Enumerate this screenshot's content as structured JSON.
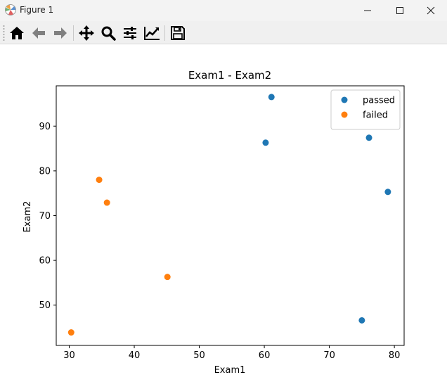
{
  "window": {
    "title": "Figure 1",
    "icons": {
      "app": "matplotlib-icon",
      "minimize": "minimize-icon",
      "maximize": "maximize-icon",
      "close": "close-icon"
    }
  },
  "toolbar": {
    "buttons": [
      {
        "name": "home-button",
        "icon": "home-icon"
      },
      {
        "name": "back-button",
        "icon": "arrow-left-icon"
      },
      {
        "name": "forward-button",
        "icon": "arrow-right-icon"
      },
      {
        "name": "pan-button",
        "icon": "move-icon"
      },
      {
        "name": "zoom-button",
        "icon": "magnifier-icon"
      },
      {
        "name": "subplots-button",
        "icon": "sliders-icon"
      },
      {
        "name": "edit-axes-button",
        "icon": "line-chart-icon"
      },
      {
        "name": "save-button",
        "icon": "floppy-disk-icon"
      }
    ]
  },
  "chart_data": {
    "type": "scatter",
    "title": "Exam1 - Exam2",
    "xlabel": "Exam1",
    "ylabel": "Exam2",
    "xlim": [
      28,
      81.5
    ],
    "ylim": [
      41,
      99
    ],
    "xticks": [
      30,
      40,
      50,
      60,
      70,
      80
    ],
    "yticks": [
      50,
      60,
      70,
      80,
      90
    ],
    "grid": false,
    "legend": "top-right",
    "series": [
      {
        "name": "passed",
        "color": "#1f77b4",
        "points": [
          [
            61.1,
            96.5
          ],
          [
            60.2,
            86.3
          ],
          [
            76.1,
            87.4
          ],
          [
            79.0,
            75.3
          ],
          [
            75.0,
            46.6
          ]
        ]
      },
      {
        "name": "failed",
        "color": "#ff7f0e",
        "points": [
          [
            34.6,
            78.0
          ],
          [
            35.8,
            72.9
          ],
          [
            45.1,
            56.3
          ],
          [
            30.3,
            43.9
          ]
        ]
      }
    ]
  }
}
